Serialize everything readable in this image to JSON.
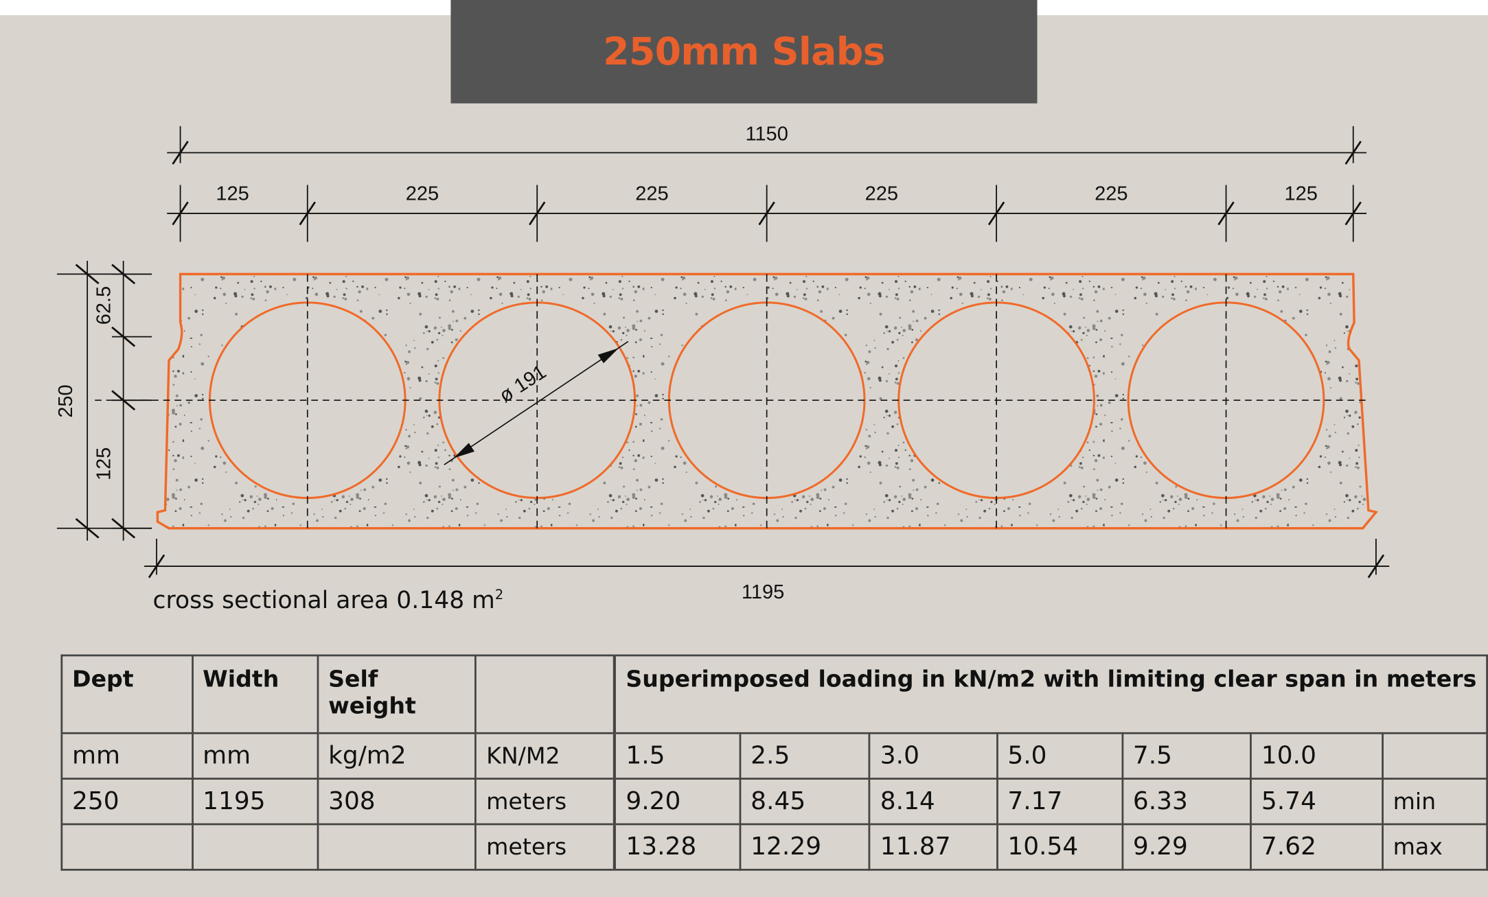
{
  "title": "250mm Slabs",
  "colors": {
    "accent": "#e8602c",
    "header_bg": "#545454",
    "background": "#d9d5ce"
  },
  "drawing": {
    "overall_top": "1150",
    "segments": [
      "125",
      "225",
      "225",
      "225",
      "225",
      "125"
    ],
    "overall_bottom": "1195",
    "height": "250",
    "top_cover": "62.5",
    "half_height": "125",
    "hole_diameter": "ø 191",
    "area_label": "cross sectional area 0.148 m",
    "area_sup": "2"
  },
  "table": {
    "headers": [
      "Dept",
      "Width",
      "Self weight",
      "",
      "Superimposed loading in kN/m2 with limiting clear span in meters"
    ],
    "units": [
      "mm",
      "mm",
      "kg/m2",
      "KN/M2",
      "1.5",
      "2.5",
      "3.0",
      "5.0",
      "7.5",
      "10.0",
      ""
    ],
    "row_min": [
      "250",
      "1195",
      "308",
      "meters",
      "9.20",
      "8.45",
      "8.14",
      "7.17",
      "6.33",
      "5.74",
      "min"
    ],
    "row_max": [
      "",
      "",
      "",
      "meters",
      "13.28",
      "12.29",
      "11.87",
      "10.54",
      "9.29",
      "7.62",
      "max"
    ]
  }
}
